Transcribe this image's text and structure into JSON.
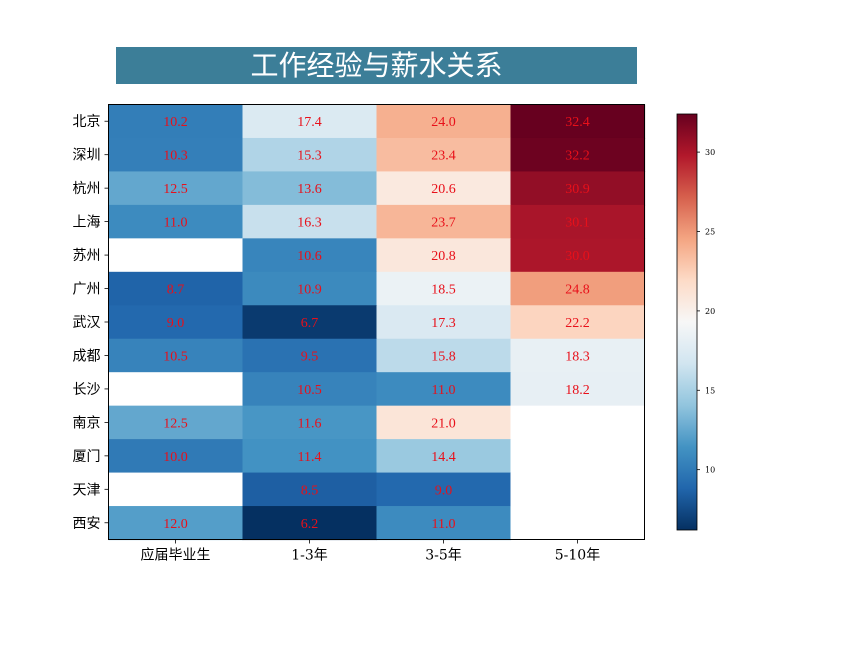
{
  "chart_data": {
    "type": "heatmap",
    "title": "工作经验与薪水关系",
    "xlabel": "",
    "ylabel": "",
    "columns": [
      "应届毕业生",
      "1-3年",
      "3-5年",
      "5-10年"
    ],
    "rows": [
      "北京",
      "深圳",
      "杭州",
      "上海",
      "苏州",
      "广州",
      "武汉",
      "成都",
      "长沙",
      "南京",
      "厦门",
      "天津",
      "西安"
    ],
    "values": [
      [
        10.2,
        17.4,
        24.0,
        32.4
      ],
      [
        10.3,
        15.3,
        23.4,
        32.2
      ],
      [
        12.5,
        13.6,
        20.6,
        30.9
      ],
      [
        11.0,
        16.3,
        23.7,
        30.1
      ],
      [
        null,
        10.6,
        20.8,
        30.0
      ],
      [
        8.7,
        10.9,
        18.5,
        24.8
      ],
      [
        9.0,
        6.7,
        17.3,
        22.2
      ],
      [
        10.5,
        9.5,
        15.8,
        18.3
      ],
      [
        null,
        10.5,
        11.0,
        18.2
      ],
      [
        12.5,
        11.6,
        21.0,
        null
      ],
      [
        10.0,
        11.4,
        14.4,
        null
      ],
      [
        null,
        8.5,
        9.0,
        null
      ],
      [
        12.0,
        6.2,
        11.0,
        null
      ]
    ],
    "colormap": "RdBu_r",
    "vmin": 6.2,
    "vmax": 32.4,
    "colorbar_ticks": [
      "10",
      "15",
      "20",
      "25",
      "30"
    ],
    "annotation_color": "#e8101a",
    "title_background": "#3c7e98",
    "title_color": "#ffffff",
    "missing_color": "#ffffff",
    "grid": false,
    "legend": "colorbar-right"
  }
}
